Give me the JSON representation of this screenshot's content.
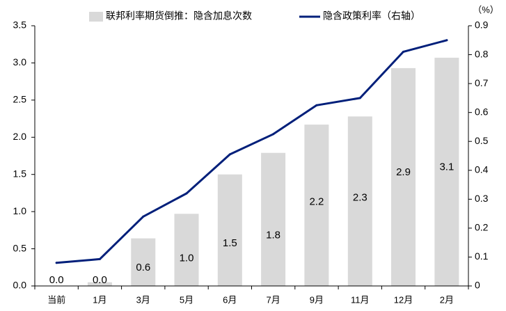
{
  "chart_data": {
    "type": "bar+line",
    "categories": [
      "当前",
      "1月",
      "3月",
      "5月",
      "6月",
      "7月",
      "9月",
      "11月",
      "12月",
      "2月"
    ],
    "series": [
      {
        "name": "联邦利率期货倒推：隐含加息次数",
        "type": "bar",
        "axis": "left",
        "values": [
          0.0,
          0.05,
          0.64,
          0.97,
          1.5,
          1.79,
          2.17,
          2.28,
          2.93,
          3.07
        ],
        "labels": [
          "0.0",
          "0.0",
          "0.6",
          "1.0",
          "1.5",
          "1.8",
          "2.2",
          "2.3",
          "2.9",
          "3.1"
        ],
        "color": "#d9d9d9"
      },
      {
        "name": "隐含政策利率（右轴）",
        "type": "line",
        "axis": "right",
        "values": [
          0.08,
          0.093,
          0.24,
          0.32,
          0.455,
          0.525,
          0.625,
          0.65,
          0.81,
          0.85
        ],
        "color": "#001f7a"
      }
    ],
    "y_left": {
      "ylim": [
        0,
        3.5
      ],
      "ticks": [
        "0.0",
        "0.5",
        "1.0",
        "1.5",
        "2.0",
        "2.5",
        "3.0",
        "3.5"
      ]
    },
    "y_right": {
      "ylim": [
        0,
        0.9
      ],
      "ticks": [
        "0",
        "0.1",
        "0.2",
        "0.3",
        "0.4",
        "0.5",
        "0.6",
        "0.7",
        "0.8",
        "0.9"
      ],
      "unit": "（%）"
    },
    "grid": false,
    "legend": "top"
  }
}
